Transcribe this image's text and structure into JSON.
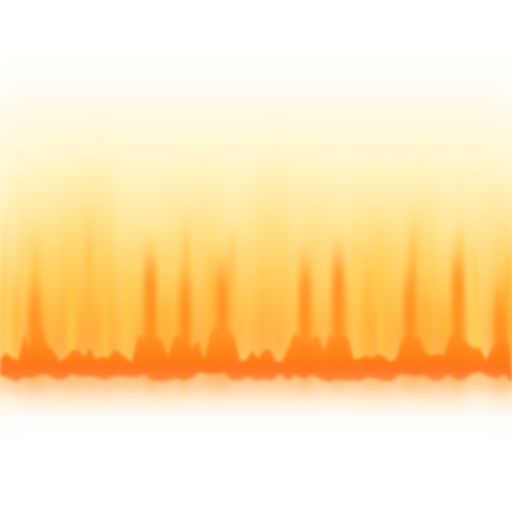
{
  "image": {
    "subject": "fire-icon",
    "colors": {
      "background": "#ffffff",
      "glow_pale": "#fff8d6",
      "glow_yellow": "#ffe68a",
      "flame_yellow": "#ffd04a",
      "flame_orange": "#ffa12b",
      "flame_deep": "#ff7a12",
      "ember_red": "#ff5a1a"
    }
  }
}
